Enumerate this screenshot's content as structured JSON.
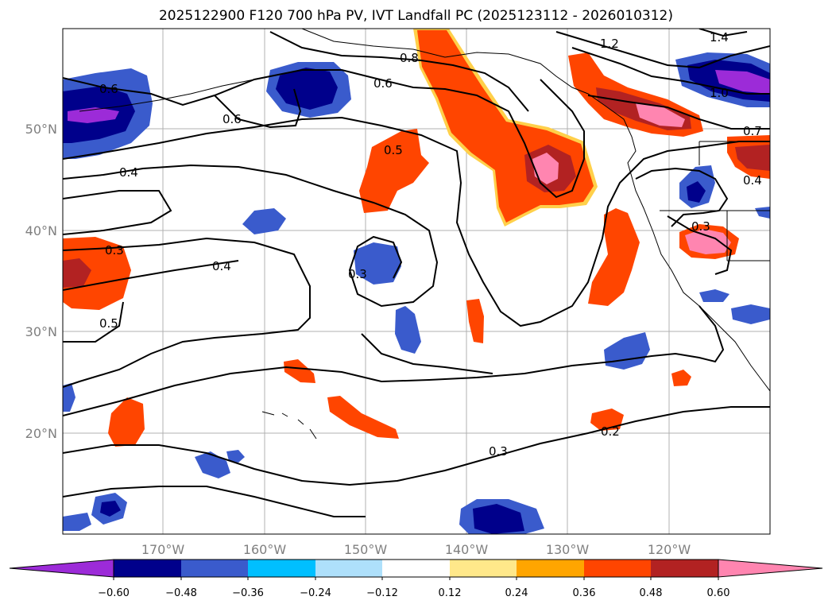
{
  "title": "2025122900 F120 700 hPa PV, IVT Landfall PC (2025123112 - 2026010312)",
  "lon_labels": [
    "170°W",
    "160°W",
    "150°W",
    "140°W",
    "130°W",
    "120°W"
  ],
  "lat_labels": [
    "50°N",
    "40°N",
    "30°N",
    "20°N"
  ],
  "contour_labels": [
    "0.8",
    "0.6",
    "0.6",
    "0.6",
    "0.5",
    "0.4",
    "0.3",
    "0.4",
    "0.3",
    "0.5",
    "0.3",
    "0.2",
    "1.2",
    "1.0",
    "0.7",
    "0.4",
    "0.3",
    "1.4"
  ],
  "colorbar": {
    "ticks": [
      "−0.60",
      "−0.48",
      "−0.36",
      "−0.24",
      "−0.12",
      "0.12",
      "0.24",
      "0.36",
      "0.48",
      "0.60"
    ],
    "colors": [
      "#9c2bd8",
      "#00008b",
      "#3a5bcc",
      "#00bfff",
      "#aee0fb",
      "#ffffff",
      "#ffe88a",
      "#ffa500",
      "#ff4500",
      "#b22222",
      "#ff85b0"
    ]
  }
}
